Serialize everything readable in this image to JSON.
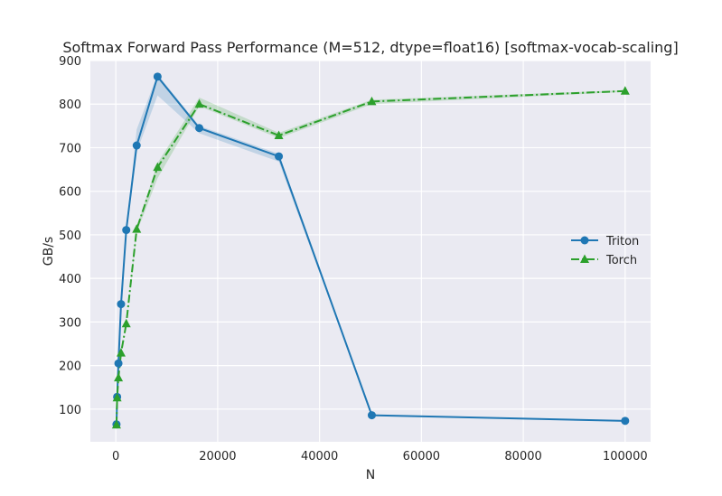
{
  "chart_data": {
    "type": "line",
    "title": "Softmax Forward Pass Performance (M=512, dtype=float16) [softmax-vocab-scaling]",
    "xlabel": "N",
    "ylabel": "GB/s",
    "xlim": [
      -5000,
      105000
    ],
    "ylim": [
      25,
      900
    ],
    "xticks": [
      0,
      20000,
      40000,
      60000,
      80000,
      100000
    ],
    "yticks": [
      100,
      200,
      300,
      400,
      500,
      600,
      700,
      800,
      900
    ],
    "grid": true,
    "legend_position": "right",
    "series": [
      {
        "name": "Triton",
        "color": "#1f77b4",
        "marker": "circle",
        "line_style": "solid",
        "x": [
          128,
          256,
          512,
          1024,
          2048,
          4096,
          8192,
          16384,
          32000,
          50257,
          100000
        ],
        "y": [
          65,
          128,
          205,
          341,
          511,
          705,
          863,
          745,
          680,
          86,
          73
        ],
        "band_low": [
          65,
          128,
          205,
          341,
          511,
          690,
          820,
          733,
          668,
          86,
          73
        ],
        "band_high": [
          65,
          128,
          205,
          341,
          511,
          742,
          868,
          750,
          686,
          86,
          73
        ]
      },
      {
        "name": "Torch",
        "color": "#2ca02c",
        "marker": "triangle",
        "line_style": "dashdot",
        "x": [
          128,
          256,
          512,
          1024,
          2048,
          4096,
          8192,
          16384,
          32000,
          50257,
          100000
        ],
        "y": [
          64,
          126,
          172,
          229,
          296,
          513,
          655,
          800,
          728,
          806,
          830
        ],
        "band_low": [
          64,
          126,
          172,
          229,
          296,
          505,
          630,
          795,
          722,
          800,
          828
        ],
        "band_high": [
          64,
          126,
          172,
          229,
          296,
          518,
          665,
          815,
          734,
          810,
          832
        ]
      }
    ]
  }
}
